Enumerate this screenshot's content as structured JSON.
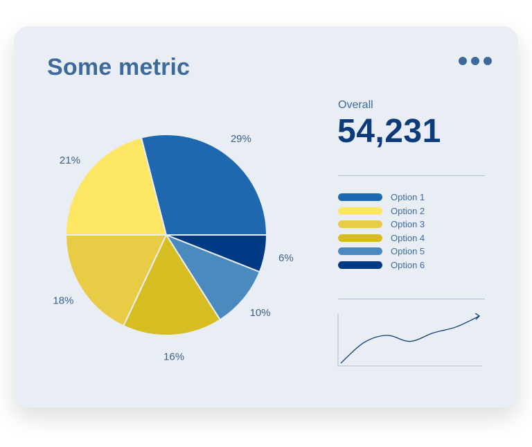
{
  "card": {
    "title": "Some metric"
  },
  "overall": {
    "label": "Overall",
    "value": "54,231"
  },
  "chart_data": {
    "type": "pie",
    "title": "Some metric",
    "categories": [
      "Option 1",
      "Option 2",
      "Option 3",
      "Option 4",
      "Option 5",
      "Option 6"
    ],
    "values": [
      29,
      21,
      18,
      16,
      10,
      6
    ],
    "value_labels": [
      "29%",
      "21%",
      "18%",
      "16%",
      "10%",
      "6%"
    ],
    "colors": [
      "#1f68b0",
      "#fde664",
      "#e9cc45",
      "#d6bd22",
      "#4b8abf",
      "#003a85"
    ],
    "legend_position": "right"
  },
  "sparkline": {
    "type": "line",
    "color": "#0d3a78",
    "y": [
      0,
      34,
      46,
      36,
      50,
      60,
      78
    ]
  }
}
